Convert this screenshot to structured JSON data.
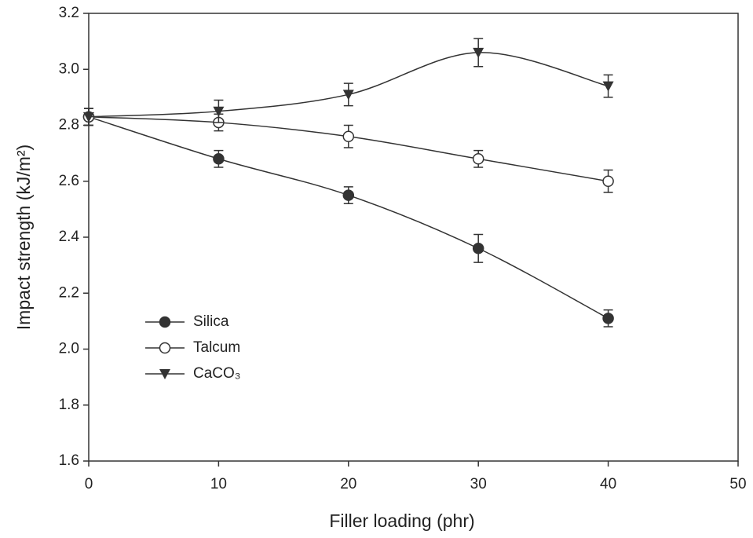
{
  "chart_data": {
    "type": "line",
    "x_label": "Filler  loading  (phr)",
    "y_label": "Impact  strength  (kJ/m²)",
    "x": [
      0,
      10,
      20,
      30,
      40
    ],
    "series": [
      {
        "name": "Silica",
        "color": "#333333",
        "marker": "filled-circle",
        "values": [
          2.83,
          2.68,
          2.55,
          2.36,
          2.11
        ],
        "errors": [
          0.03,
          0.03,
          0.03,
          0.05,
          0.03
        ]
      },
      {
        "name": "Talcum",
        "color": "#333333",
        "marker": "open-circle",
        "values": [
          2.83,
          2.81,
          2.76,
          2.68,
          2.6
        ],
        "errors": [
          0.03,
          0.03,
          0.04,
          0.03,
          0.04
        ]
      },
      {
        "name": "CaCO₃",
        "color": "#333333",
        "marker": "down-triangle",
        "values": [
          2.83,
          2.85,
          2.91,
          3.06,
          2.94
        ],
        "errors": [
          0.03,
          0.04,
          0.04,
          0.05,
          0.04
        ]
      }
    ],
    "xlim": [
      0,
      50
    ],
    "xticks": [
      0,
      10,
      20,
      30,
      40,
      50
    ],
    "ylim": [
      1.6,
      3.2
    ],
    "yticks": [
      1.6,
      1.8,
      {
        "value": 2,
        "label": "2.0"
      },
      2.2,
      2.4,
      2.6,
      2.8,
      {
        "value": 3,
        "label": "3.0"
      },
      3.2
    ],
    "legend": "lower-left",
    "smooth": true
  }
}
